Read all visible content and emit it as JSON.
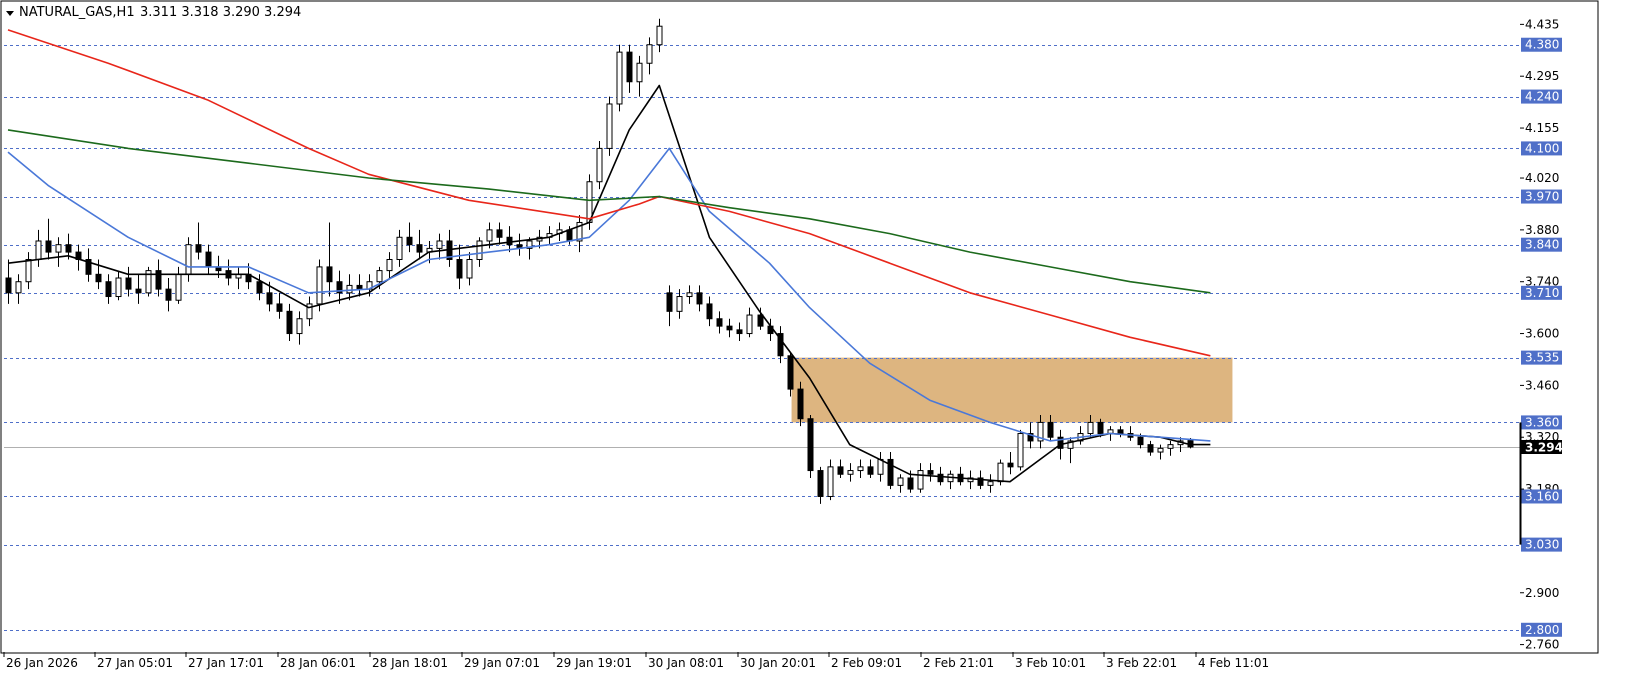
{
  "title": {
    "symbol": "NATURAL_GAS,H1",
    "ohlc": "3.311 3.318 3.290 3.294"
  },
  "chart_data": {
    "type": "candlestick",
    "timeframe": "H1",
    "y_axis": {
      "min": 2.74,
      "max": 4.49,
      "ticks": [
        "4.435",
        "4.295",
        "4.155",
        "4.020",
        "3.880",
        "3.740",
        "3.600",
        "3.460",
        "3.320",
        "3.180",
        "2.900",
        "2.760"
      ]
    },
    "x_ticks": [
      "26 Jan 2026",
      "27 Jan 05:01",
      "27 Jan 17:01",
      "28 Jan 06:01",
      "28 Jan 18:01",
      "29 Jan 07:01",
      "29 Jan 19:01",
      "30 Jan 08:01",
      "30 Jan 20:01",
      "2 Feb 09:01",
      "2 Feb 21:01",
      "3 Feb 10:01",
      "3 Feb 22:01",
      "4 Feb 11:01"
    ],
    "levels": [
      {
        "value": "4.380",
        "color": "#4f6fc8"
      },
      {
        "value": "4.240",
        "color": "#4f6fc8"
      },
      {
        "value": "4.100",
        "color": "#4f6fc8"
      },
      {
        "value": "3.970",
        "color": "#4f6fc8"
      },
      {
        "value": "3.840",
        "color": "#4f6fc8"
      },
      {
        "value": "3.710",
        "color": "#4f6fc8"
      },
      {
        "value": "3.535",
        "color": "#4f6fc8"
      },
      {
        "value": "3.360",
        "color": "#4f6fc8"
      },
      {
        "value": "3.160",
        "color": "#4f6fc8"
      },
      {
        "value": "3.030",
        "color": "#4f6fc8"
      },
      {
        "value": "2.800",
        "color": "#4f6fc8"
      }
    ],
    "current_price": "3.294",
    "zone": {
      "from": 3.36,
      "to": 3.535,
      "color": "#ddb580"
    },
    "candles": [
      {
        "o": 3.75,
        "h": 3.8,
        "l": 3.68,
        "c": 3.71
      },
      {
        "o": 3.71,
        "h": 3.76,
        "l": 3.68,
        "c": 3.74
      },
      {
        "o": 3.74,
        "h": 3.82,
        "l": 3.72,
        "c": 3.8
      },
      {
        "o": 3.8,
        "h": 3.88,
        "l": 3.78,
        "c": 3.85
      },
      {
        "o": 3.85,
        "h": 3.91,
        "l": 3.8,
        "c": 3.82
      },
      {
        "o": 3.82,
        "h": 3.86,
        "l": 3.78,
        "c": 3.84
      },
      {
        "o": 3.84,
        "h": 3.87,
        "l": 3.8,
        "c": 3.82
      },
      {
        "o": 3.82,
        "h": 3.84,
        "l": 3.77,
        "c": 3.8
      },
      {
        "o": 3.8,
        "h": 3.83,
        "l": 3.74,
        "c": 3.76
      },
      {
        "o": 3.76,
        "h": 3.8,
        "l": 3.72,
        "c": 3.74
      },
      {
        "o": 3.74,
        "h": 3.76,
        "l": 3.68,
        "c": 3.7
      },
      {
        "o": 3.7,
        "h": 3.77,
        "l": 3.69,
        "c": 3.75
      },
      {
        "o": 3.75,
        "h": 3.78,
        "l": 3.7,
        "c": 3.72
      },
      {
        "o": 3.72,
        "h": 3.76,
        "l": 3.68,
        "c": 3.71
      },
      {
        "o": 3.71,
        "h": 3.78,
        "l": 3.7,
        "c": 3.77
      },
      {
        "o": 3.77,
        "h": 3.8,
        "l": 3.7,
        "c": 3.72
      },
      {
        "o": 3.72,
        "h": 3.75,
        "l": 3.66,
        "c": 3.69
      },
      {
        "o": 3.69,
        "h": 3.78,
        "l": 3.68,
        "c": 3.76
      },
      {
        "o": 3.76,
        "h": 3.86,
        "l": 3.74,
        "c": 3.84
      },
      {
        "o": 3.84,
        "h": 3.9,
        "l": 3.8,
        "c": 3.82
      },
      {
        "o": 3.82,
        "h": 3.84,
        "l": 3.76,
        "c": 3.78
      },
      {
        "o": 3.78,
        "h": 3.81,
        "l": 3.75,
        "c": 3.77
      },
      {
        "o": 3.77,
        "h": 3.8,
        "l": 3.73,
        "c": 3.75
      },
      {
        "o": 3.75,
        "h": 3.78,
        "l": 3.72,
        "c": 3.76
      },
      {
        "o": 3.76,
        "h": 3.79,
        "l": 3.72,
        "c": 3.74
      },
      {
        "o": 3.74,
        "h": 3.76,
        "l": 3.69,
        "c": 3.71
      },
      {
        "o": 3.71,
        "h": 3.74,
        "l": 3.66,
        "c": 3.68
      },
      {
        "o": 3.68,
        "h": 3.71,
        "l": 3.64,
        "c": 3.66
      },
      {
        "o": 3.66,
        "h": 3.68,
        "l": 3.58,
        "c": 3.6
      },
      {
        "o": 3.6,
        "h": 3.66,
        "l": 3.57,
        "c": 3.64
      },
      {
        "o": 3.64,
        "h": 3.7,
        "l": 3.62,
        "c": 3.68
      },
      {
        "o": 3.68,
        "h": 3.8,
        "l": 3.66,
        "c": 3.78
      },
      {
        "o": 3.78,
        "h": 3.9,
        "l": 3.7,
        "c": 3.74
      },
      {
        "o": 3.74,
        "h": 3.77,
        "l": 3.68,
        "c": 3.71
      },
      {
        "o": 3.71,
        "h": 3.76,
        "l": 3.69,
        "c": 3.73
      },
      {
        "o": 3.73,
        "h": 3.76,
        "l": 3.7,
        "c": 3.72
      },
      {
        "o": 3.72,
        "h": 3.76,
        "l": 3.7,
        "c": 3.74
      },
      {
        "o": 3.74,
        "h": 3.78,
        "l": 3.72,
        "c": 3.77
      },
      {
        "o": 3.77,
        "h": 3.82,
        "l": 3.75,
        "c": 3.8
      },
      {
        "o": 3.8,
        "h": 3.88,
        "l": 3.78,
        "c": 3.86
      },
      {
        "o": 3.86,
        "h": 3.9,
        "l": 3.82,
        "c": 3.84
      },
      {
        "o": 3.84,
        "h": 3.88,
        "l": 3.8,
        "c": 3.82
      },
      {
        "o": 3.82,
        "h": 3.85,
        "l": 3.79,
        "c": 3.83
      },
      {
        "o": 3.83,
        "h": 3.87,
        "l": 3.8,
        "c": 3.85
      },
      {
        "o": 3.85,
        "h": 3.88,
        "l": 3.78,
        "c": 3.8
      },
      {
        "o": 3.8,
        "h": 3.84,
        "l": 3.72,
        "c": 3.75
      },
      {
        "o": 3.75,
        "h": 3.82,
        "l": 3.73,
        "c": 3.8
      },
      {
        "o": 3.8,
        "h": 3.86,
        "l": 3.78,
        "c": 3.85
      },
      {
        "o": 3.85,
        "h": 3.9,
        "l": 3.83,
        "c": 3.88
      },
      {
        "o": 3.88,
        "h": 3.9,
        "l": 3.84,
        "c": 3.86
      },
      {
        "o": 3.86,
        "h": 3.89,
        "l": 3.82,
        "c": 3.84
      },
      {
        "o": 3.84,
        "h": 3.87,
        "l": 3.81,
        "c": 3.83
      },
      {
        "o": 3.83,
        "h": 3.86,
        "l": 3.8,
        "c": 3.85
      },
      {
        "o": 3.85,
        "h": 3.88,
        "l": 3.83,
        "c": 3.86
      },
      {
        "o": 3.86,
        "h": 3.89,
        "l": 3.84,
        "c": 3.87
      },
      {
        "o": 3.87,
        "h": 3.9,
        "l": 3.85,
        "c": 3.88
      },
      {
        "o": 3.88,
        "h": 3.89,
        "l": 3.84,
        "c": 3.85
      },
      {
        "o": 3.85,
        "h": 3.92,
        "l": 3.82,
        "c": 3.9
      },
      {
        "o": 3.9,
        "h": 4.03,
        "l": 3.88,
        "c": 4.01
      },
      {
        "o": 4.01,
        "h": 4.12,
        "l": 3.99,
        "c": 4.1
      },
      {
        "o": 4.1,
        "h": 4.24,
        "l": 4.08,
        "c": 4.22
      },
      {
        "o": 4.22,
        "h": 4.38,
        "l": 4.2,
        "c": 4.36
      },
      {
        "o": 4.36,
        "h": 4.38,
        "l": 4.25,
        "c": 4.28
      },
      {
        "o": 4.28,
        "h": 4.35,
        "l": 4.24,
        "c": 4.33
      },
      {
        "o": 4.33,
        "h": 4.4,
        "l": 4.3,
        "c": 4.38
      },
      {
        "o": 4.38,
        "h": 4.45,
        "l": 4.36,
        "c": 4.43
      },
      {
        "o": 3.71,
        "h": 3.73,
        "l": 3.62,
        "c": 3.66
      },
      {
        "o": 3.66,
        "h": 3.72,
        "l": 3.64,
        "c": 3.7
      },
      {
        "o": 3.7,
        "h": 3.73,
        "l": 3.68,
        "c": 3.71
      },
      {
        "o": 3.71,
        "h": 3.73,
        "l": 3.66,
        "c": 3.68
      },
      {
        "o": 3.68,
        "h": 3.7,
        "l": 3.62,
        "c": 3.64
      },
      {
        "o": 3.64,
        "h": 3.66,
        "l": 3.6,
        "c": 3.62
      },
      {
        "o": 3.62,
        "h": 3.64,
        "l": 3.59,
        "c": 3.61
      },
      {
        "o": 3.61,
        "h": 3.63,
        "l": 3.58,
        "c": 3.6
      },
      {
        "o": 3.6,
        "h": 3.67,
        "l": 3.59,
        "c": 3.65
      },
      {
        "o": 3.65,
        "h": 3.67,
        "l": 3.61,
        "c": 3.62
      },
      {
        "o": 3.62,
        "h": 3.64,
        "l": 3.58,
        "c": 3.6
      },
      {
        "o": 3.6,
        "h": 3.62,
        "l": 3.52,
        "c": 3.54
      },
      {
        "o": 3.54,
        "h": 3.55,
        "l": 3.43,
        "c": 3.45
      },
      {
        "o": 3.45,
        "h": 3.47,
        "l": 3.35,
        "c": 3.37
      },
      {
        "o": 3.37,
        "h": 3.38,
        "l": 3.21,
        "c": 3.23
      },
      {
        "o": 3.23,
        "h": 3.24,
        "l": 3.14,
        "c": 3.16
      },
      {
        "o": 3.16,
        "h": 3.26,
        "l": 3.15,
        "c": 3.24
      },
      {
        "o": 3.24,
        "h": 3.26,
        "l": 3.21,
        "c": 3.22
      },
      {
        "o": 3.22,
        "h": 3.25,
        "l": 3.2,
        "c": 3.23
      },
      {
        "o": 3.23,
        "h": 3.26,
        "l": 3.21,
        "c": 3.24
      },
      {
        "o": 3.24,
        "h": 3.26,
        "l": 3.21,
        "c": 3.22
      },
      {
        "o": 3.22,
        "h": 3.28,
        "l": 3.2,
        "c": 3.26
      },
      {
        "o": 3.26,
        "h": 3.28,
        "l": 3.18,
        "c": 3.19
      },
      {
        "o": 3.19,
        "h": 3.22,
        "l": 3.17,
        "c": 3.21
      },
      {
        "o": 3.21,
        "h": 3.23,
        "l": 3.17,
        "c": 3.18
      },
      {
        "o": 3.18,
        "h": 3.25,
        "l": 3.17,
        "c": 3.23
      },
      {
        "o": 3.23,
        "h": 3.25,
        "l": 3.2,
        "c": 3.22
      },
      {
        "o": 3.22,
        "h": 3.24,
        "l": 3.19,
        "c": 3.2
      },
      {
        "o": 3.2,
        "h": 3.23,
        "l": 3.18,
        "c": 3.22
      },
      {
        "o": 3.22,
        "h": 3.24,
        "l": 3.19,
        "c": 3.2
      },
      {
        "o": 3.2,
        "h": 3.23,
        "l": 3.18,
        "c": 3.21
      },
      {
        "o": 3.21,
        "h": 3.23,
        "l": 3.18,
        "c": 3.19
      },
      {
        "o": 3.19,
        "h": 3.22,
        "l": 3.17,
        "c": 3.2
      },
      {
        "o": 3.2,
        "h": 3.26,
        "l": 3.19,
        "c": 3.25
      },
      {
        "o": 3.25,
        "h": 3.28,
        "l": 3.22,
        "c": 3.24
      },
      {
        "o": 3.24,
        "h": 3.34,
        "l": 3.23,
        "c": 3.33
      },
      {
        "o": 3.33,
        "h": 3.36,
        "l": 3.29,
        "c": 3.31
      },
      {
        "o": 3.31,
        "h": 3.38,
        "l": 3.29,
        "c": 3.36
      },
      {
        "o": 3.36,
        "h": 3.38,
        "l": 3.31,
        "c": 3.32
      },
      {
        "o": 3.32,
        "h": 3.34,
        "l": 3.26,
        "c": 3.29
      },
      {
        "o": 3.29,
        "h": 3.32,
        "l": 3.25,
        "c": 3.31
      },
      {
        "o": 3.31,
        "h": 3.35,
        "l": 3.3,
        "c": 3.33
      },
      {
        "o": 3.33,
        "h": 3.38,
        "l": 3.32,
        "c": 3.36
      },
      {
        "o": 3.36,
        "h": 3.37,
        "l": 3.32,
        "c": 3.33
      },
      {
        "o": 3.33,
        "h": 3.35,
        "l": 3.31,
        "c": 3.34
      },
      {
        "o": 3.34,
        "h": 3.35,
        "l": 3.32,
        "c": 3.33
      },
      {
        "o": 3.33,
        "h": 3.35,
        "l": 3.31,
        "c": 3.32
      },
      {
        "o": 3.32,
        "h": 3.33,
        "l": 3.29,
        "c": 3.3
      },
      {
        "o": 3.3,
        "h": 3.31,
        "l": 3.27,
        "c": 3.28
      },
      {
        "o": 3.28,
        "h": 3.3,
        "l": 3.26,
        "c": 3.29
      },
      {
        "o": 3.29,
        "h": 3.31,
        "l": 3.27,
        "c": 3.3
      },
      {
        "o": 3.3,
        "h": 3.32,
        "l": 3.28,
        "c": 3.31
      },
      {
        "o": 3.311,
        "h": 3.318,
        "l": 3.29,
        "c": 3.294
      }
    ],
    "ma_series": [
      {
        "color": "#000000",
        "points": [
          [
            0,
            3.79
          ],
          [
            6,
            3.81
          ],
          [
            12,
            3.76
          ],
          [
            18,
            3.76
          ],
          [
            24,
            3.76
          ],
          [
            30,
            3.67
          ],
          [
            36,
            3.71
          ],
          [
            42,
            3.82
          ],
          [
            48,
            3.84
          ],
          [
            54,
            3.86
          ],
          [
            58,
            3.9
          ],
          [
            62,
            4.15
          ],
          [
            65,
            4.27
          ],
          [
            70,
            3.86
          ],
          [
            75,
            3.66
          ],
          [
            80,
            3.48
          ],
          [
            84,
            3.3
          ],
          [
            90,
            3.22
          ],
          [
            95,
            3.21
          ],
          [
            100,
            3.2
          ],
          [
            105,
            3.3
          ],
          [
            110,
            3.33
          ],
          [
            115,
            3.32
          ],
          [
            118,
            3.3
          ],
          [
            120,
            3.3
          ]
        ]
      },
      {
        "color": "#4a78d8",
        "points": [
          [
            0,
            4.09
          ],
          [
            4,
            4.0
          ],
          [
            12,
            3.86
          ],
          [
            18,
            3.78
          ],
          [
            24,
            3.78
          ],
          [
            30,
            3.71
          ],
          [
            36,
            3.72
          ],
          [
            42,
            3.8
          ],
          [
            48,
            3.82
          ],
          [
            54,
            3.84
          ],
          [
            58,
            3.86
          ],
          [
            62,
            3.96
          ],
          [
            66,
            4.1
          ],
          [
            70,
            3.93
          ],
          [
            76,
            3.79
          ],
          [
            80,
            3.67
          ],
          [
            86,
            3.52
          ],
          [
            92,
            3.42
          ],
          [
            98,
            3.36
          ],
          [
            104,
            3.31
          ],
          [
            110,
            3.33
          ],
          [
            115,
            3.32
          ],
          [
            120,
            3.31
          ]
        ]
      },
      {
        "color": "#e8261a",
        "points": [
          [
            0,
            4.42
          ],
          [
            10,
            4.33
          ],
          [
            20,
            4.23
          ],
          [
            30,
            4.1
          ],
          [
            36,
            4.03
          ],
          [
            46,
            3.96
          ],
          [
            58,
            3.91
          ],
          [
            63,
            3.95
          ],
          [
            65,
            3.97
          ],
          [
            72,
            3.93
          ],
          [
            80,
            3.87
          ],
          [
            88,
            3.79
          ],
          [
            96,
            3.71
          ],
          [
            104,
            3.65
          ],
          [
            112,
            3.59
          ],
          [
            120,
            3.54
          ]
        ]
      },
      {
        "color": "#1c6a1c",
        "points": [
          [
            0,
            4.15
          ],
          [
            12,
            4.1
          ],
          [
            24,
            4.06
          ],
          [
            36,
            4.02
          ],
          [
            48,
            3.99
          ],
          [
            58,
            3.96
          ],
          [
            65,
            3.97
          ],
          [
            72,
            3.94
          ],
          [
            80,
            3.91
          ],
          [
            88,
            3.87
          ],
          [
            96,
            3.82
          ],
          [
            104,
            3.78
          ],
          [
            112,
            3.74
          ],
          [
            120,
            3.71
          ]
        ]
      }
    ]
  }
}
